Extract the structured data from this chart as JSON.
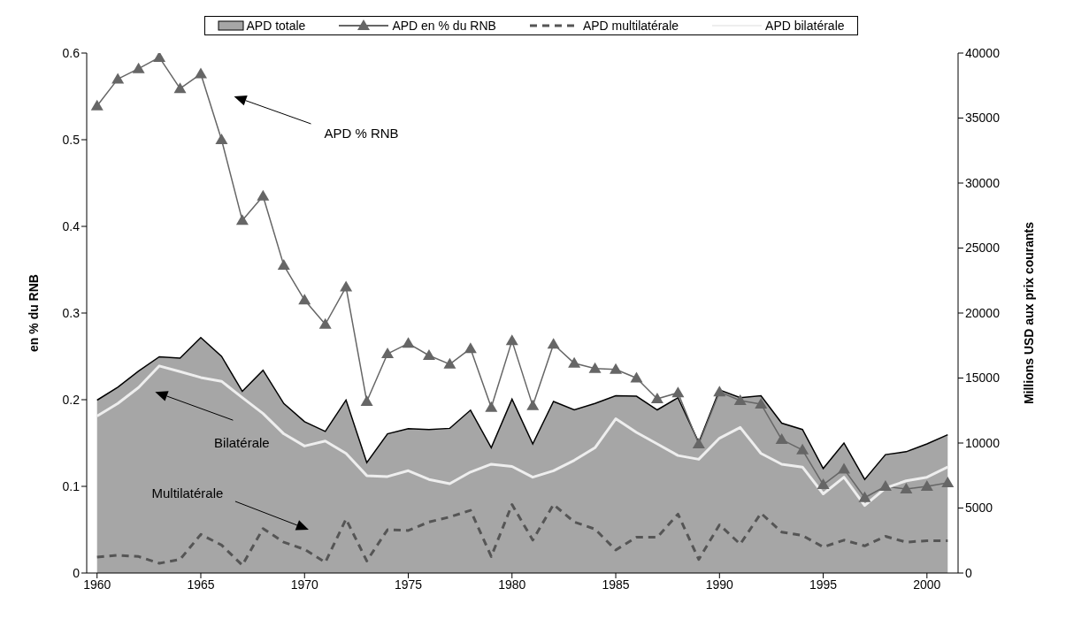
{
  "chart_data": {
    "type": "line",
    "ylabel": "en % du RNB",
    "y2label": "Millions USD aux prix courants",
    "x": [
      1960,
      1961,
      1962,
      1963,
      1964,
      1965,
      1966,
      1967,
      1968,
      1969,
      1970,
      1971,
      1972,
      1973,
      1974,
      1975,
      1976,
      1977,
      1978,
      1979,
      1980,
      1981,
      1982,
      1983,
      1984,
      1985,
      1986,
      1987,
      1988,
      1989,
      1990,
      1991,
      1992,
      1993,
      1994,
      1995,
      1996,
      1997,
      1998,
      1999,
      2000,
      2001
    ],
    "xlim": [
      1959.5,
      2001.5
    ],
    "xticks": [
      1960,
      1965,
      1970,
      1975,
      1980,
      1985,
      1990,
      1995,
      2000
    ],
    "ylim": [
      0,
      0.6
    ],
    "yticks": [
      0,
      0.1,
      0.2,
      0.3,
      0.4,
      0.5,
      0.6
    ],
    "y2lim": [
      0,
      40000
    ],
    "y2ticks": [
      0,
      5000,
      10000,
      15000,
      20000,
      25000,
      30000,
      35000,
      40000
    ],
    "legend": "top",
    "series": [
      {
        "name": "APD totale",
        "type": "area",
        "axis": "y2",
        "color": "#a6a6a6",
        "values": [
          13300,
          14300,
          15530,
          16640,
          16530,
          18110,
          16670,
          13970,
          15600,
          13040,
          11640,
          10890,
          13310,
          8490,
          10710,
          11110,
          11040,
          11130,
          12530,
          9640,
          13370,
          9930,
          13200,
          12550,
          13040,
          13640,
          13600,
          12550,
          13490,
          10040,
          14090,
          13490,
          13640,
          11530,
          11040,
          8040,
          10000,
          7200,
          9110,
          9330,
          9930,
          10640
        ]
      },
      {
        "name": "APD en % du RNB",
        "type": "line",
        "axis": "y",
        "color": "#666666",
        "marker": "triangle",
        "values": [
          0.539,
          0.57,
          0.582,
          0.595,
          0.559,
          0.576,
          0.5,
          0.407,
          0.435,
          0.355,
          0.315,
          0.287,
          0.33,
          0.198,
          0.253,
          0.265,
          0.251,
          0.241,
          0.259,
          0.191,
          0.268,
          0.193,
          0.264,
          0.242,
          0.236,
          0.235,
          0.225,
          0.201,
          0.208,
          0.149,
          0.209,
          0.199,
          0.195,
          0.154,
          0.142,
          0.102,
          0.12,
          0.087,
          0.1,
          0.097,
          0.1,
          0.104
        ]
      },
      {
        "name": "APD multilatérale",
        "type": "line",
        "axis": "y2",
        "color": "#555555",
        "line_style": "dashed",
        "values": [
          1220,
          1370,
          1270,
          750,
          1040,
          2970,
          2150,
          600,
          3420,
          2370,
          1820,
          820,
          4150,
          930,
          3330,
          3270,
          3930,
          4310,
          4820,
          1270,
          5270,
          2530,
          5270,
          3930,
          3380,
          1770,
          2750,
          2750,
          4530,
          1040,
          3710,
          2220,
          4600,
          3150,
          2890,
          2000,
          2530,
          2090,
          2820,
          2370,
          2490,
          2490
        ]
      },
      {
        "name": "APD bilatérale",
        "type": "line",
        "axis": "y2",
        "color": "#eeeeee",
        "values": [
          12070,
          13040,
          14270,
          15930,
          15490,
          15040,
          14750,
          13490,
          12270,
          10710,
          9770,
          10150,
          9200,
          7490,
          7420,
          7870,
          7200,
          6870,
          7770,
          8370,
          8200,
          7370,
          7870,
          8670,
          9640,
          11870,
          10820,
          9930,
          9040,
          8750,
          10370,
          11200,
          9200,
          8370,
          8150,
          6090,
          7370,
          5200,
          6530,
          7090,
          7370,
          8150
        ]
      }
    ],
    "annotations": [
      "APD % RNB",
      "Bilatérale",
      "Multilatérale"
    ]
  }
}
